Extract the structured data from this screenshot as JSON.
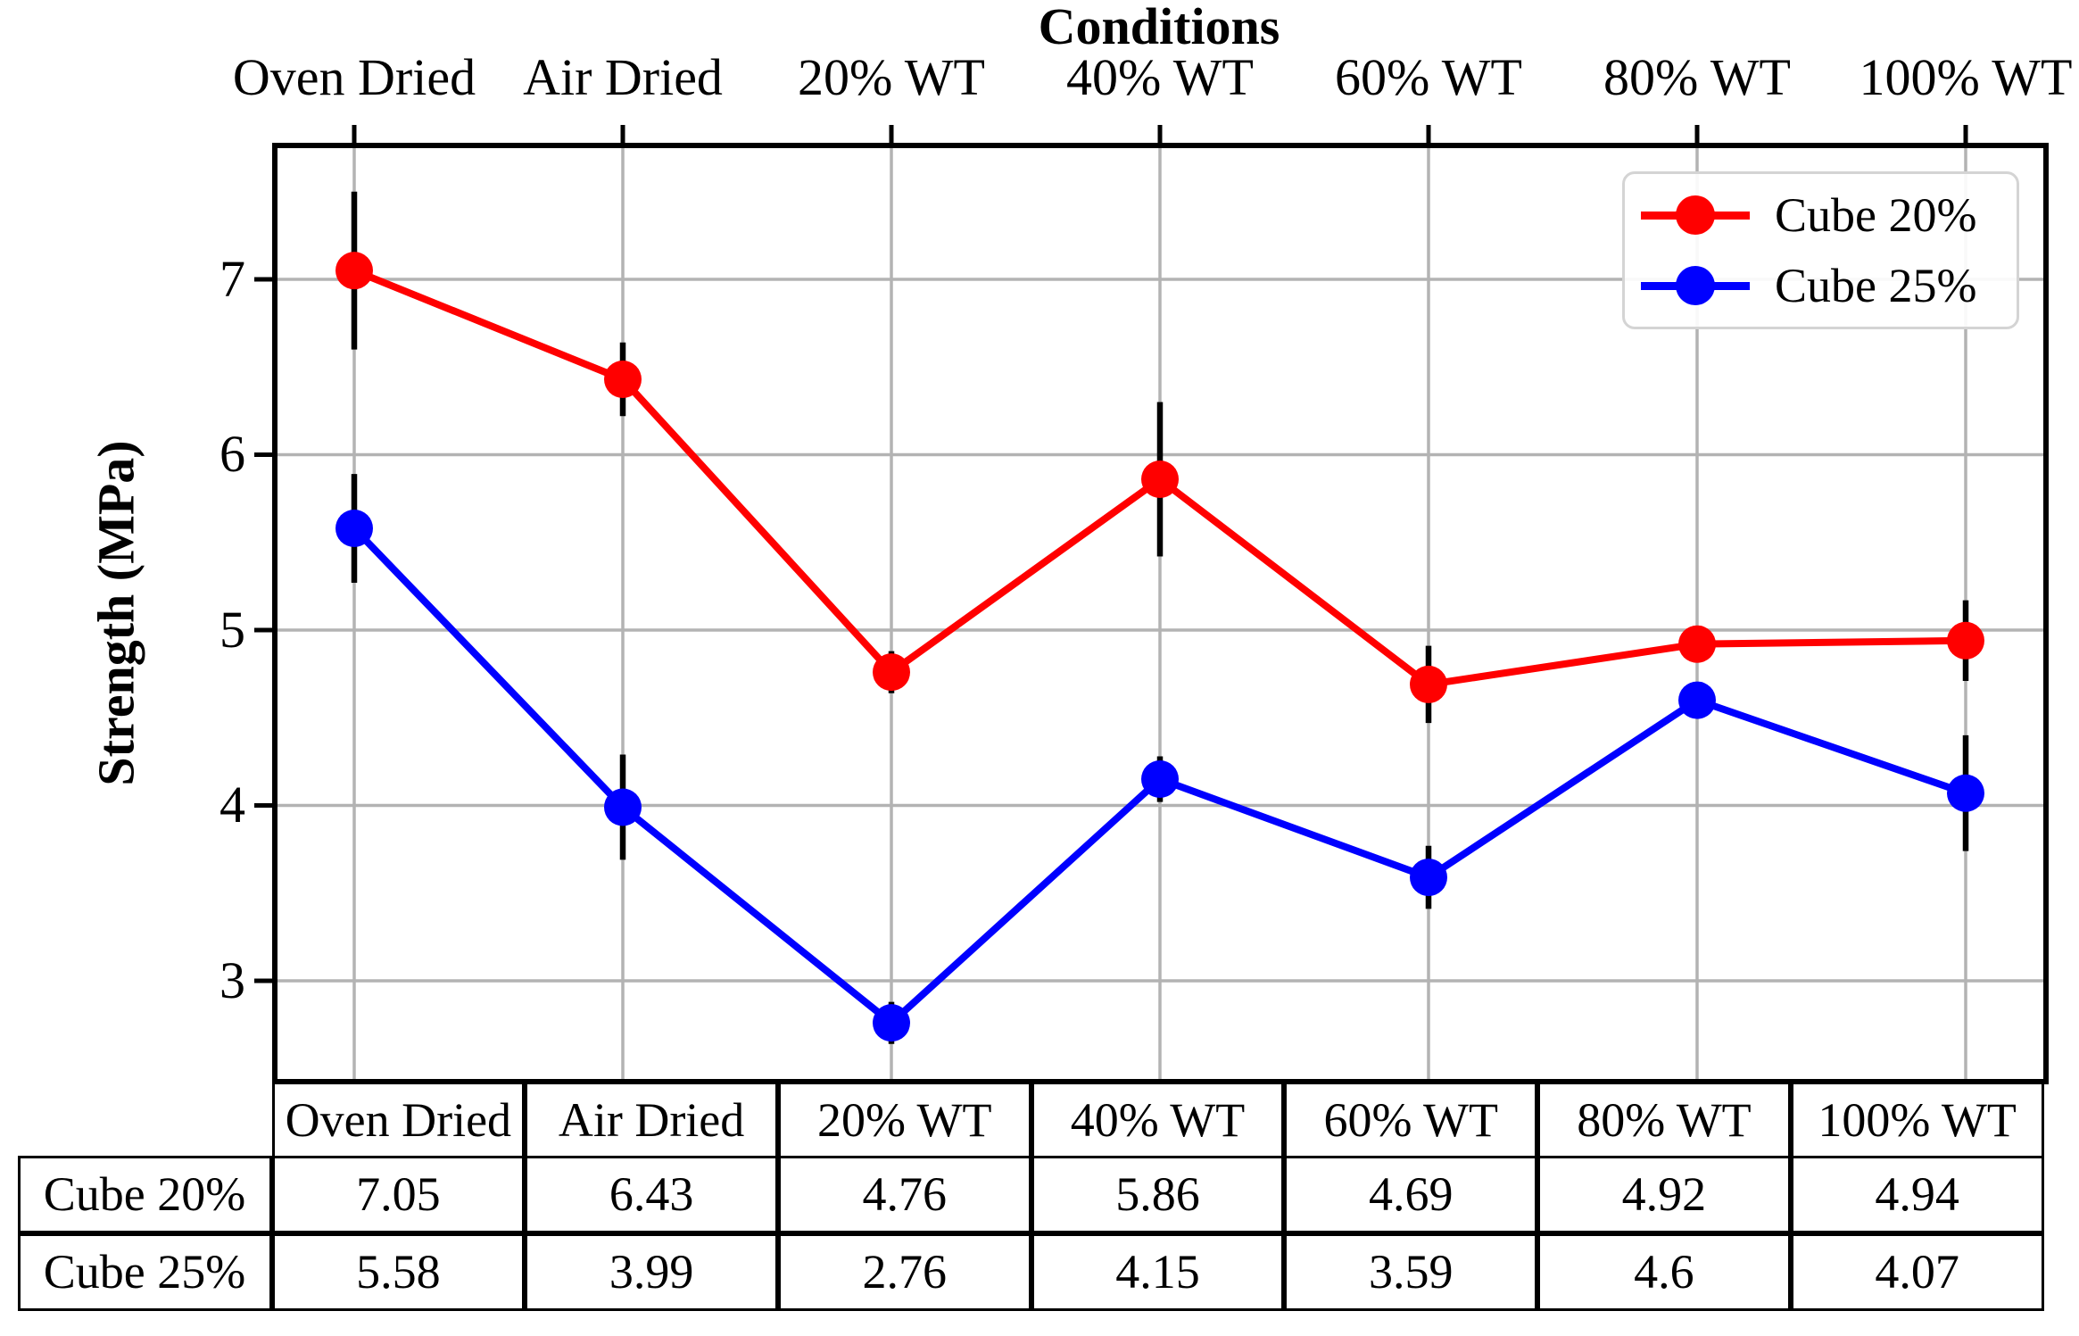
{
  "chart_data": {
    "type": "line",
    "title": "Conditions",
    "ylabel": "Strength (MPa)",
    "categories": [
      "Oven Dried",
      "Air Dried",
      "20% WT",
      "40% WT",
      "60% WT",
      "80% WT",
      "100% WT"
    ],
    "series": [
      {
        "name": "Cube 20%",
        "color": "#ff0000",
        "values": [
          7.05,
          6.43,
          4.76,
          5.86,
          4.69,
          4.92,
          4.94
        ],
        "yerr": [
          0.45,
          0.21,
          0.12,
          0.44,
          0.22,
          0,
          0.23
        ]
      },
      {
        "name": "Cube 25%",
        "color": "#0000ff",
        "values": [
          5.58,
          3.99,
          2.76,
          4.15,
          3.59,
          4.6,
          4.07
        ],
        "yerr": [
          0.31,
          0.3,
          0.12,
          0.13,
          0.18,
          0,
          0.33
        ]
      }
    ],
    "yticks": [
      7,
      6,
      5,
      4,
      3
    ],
    "ylim": [
      2.42,
      7.76
    ],
    "grid": true,
    "grid_color": "#b3b3b3",
    "legend_position": "upper right",
    "marker": "circle",
    "error_bar_color": "#000000"
  },
  "table": {
    "column_headers": [
      "Oven Dried",
      "Air Dried",
      "20% WT",
      "40% WT",
      "60% WT",
      "80% WT",
      "100% WT"
    ],
    "rows": [
      {
        "label": "Cube 20%",
        "values": [
          "7.05",
          "6.43",
          "4.76",
          "5.86",
          "4.69",
          "4.92",
          "4.94"
        ]
      },
      {
        "label": "Cube 25%",
        "values": [
          "5.58",
          "3.99",
          "2.76",
          "4.15",
          "3.59",
          "4.6",
          "4.07"
        ]
      }
    ]
  }
}
